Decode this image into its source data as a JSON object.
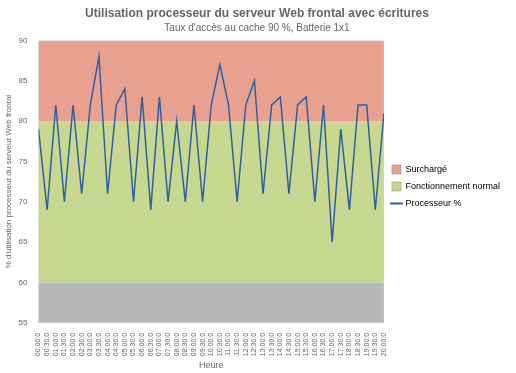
{
  "chart_data": {
    "type": "line",
    "title": "Utilisation processeur du serveur Web frontal avec écritures",
    "subtitle": "Taux d'accès au cache 90 %, Batterie 1x1",
    "x_label": "Heure",
    "y_label": "% d'utilisation processeur du serveur Web frontal",
    "categories": [
      "00:00:0",
      "00:30:0",
      "01:00:0",
      "01:30:0",
      "02:00:0",
      "02:30:0",
      "03:00:0",
      "03:30:0",
      "04:00:0",
      "04:30:0",
      "05:00:0",
      "05:30:0",
      "06:00:0",
      "06:30:0",
      "07:00:0",
      "07:30:0",
      "08:00:0",
      "08:30:0",
      "09:00:0",
      "09:30:0",
      "10:00:0",
      "10:30:0",
      "11:00:0",
      "11:30:0",
      "12:00:0",
      "12:30:0",
      "13:00:0",
      "13:30:0",
      "14:00:0",
      "14:30:0",
      "15:00:0",
      "15:30:0",
      "16:00:0",
      "16:30:0",
      "17:00:0",
      "17:30:0",
      "18:00:0",
      "18:30:0",
      "19:00:0",
      "19:30:0",
      "20:00:0"
    ],
    "series": [
      {
        "name": "Processeur %",
        "color": "#3060a0",
        "values": [
          79,
          69,
          82,
          70,
          82,
          71,
          82,
          88,
          71,
          82,
          84,
          70,
          83,
          69,
          83,
          70,
          80,
          70,
          82,
          70,
          82,
          87,
          82,
          70,
          82,
          85,
          71,
          82,
          83,
          71,
          82,
          83,
          70,
          82,
          65,
          79,
          69,
          82,
          82,
          69,
          81
        ]
      }
    ],
    "bands": [
      {
        "name": "Surchargé",
        "from": 80,
        "to": 90,
        "color": "#e8a090"
      },
      {
        "name": "Fonctionnement normal",
        "from": 60,
        "to": 80,
        "color": "#c8d890"
      },
      {
        "from": 55,
        "to": 60,
        "color": "#b8b8b8"
      }
    ],
    "ylim": [
      55,
      90
    ],
    "yticks": [
      55,
      60,
      65,
      70,
      75,
      80,
      85,
      90
    ],
    "grid": false,
    "legend": "right"
  }
}
